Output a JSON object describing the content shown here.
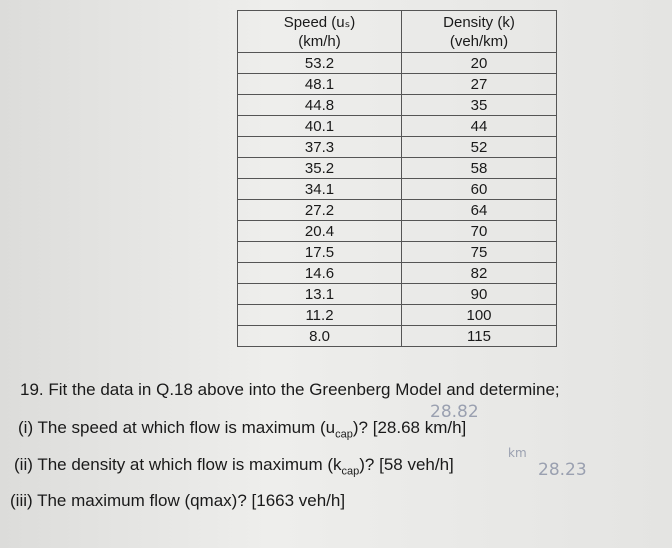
{
  "table": {
    "header": [
      {
        "line1": "Speed (uₛ)",
        "line2": "(km/h)"
      },
      {
        "line1": "Density (k)",
        "line2": "(veh/km)"
      }
    ],
    "rows": [
      [
        "53.2",
        "20"
      ],
      [
        "48.1",
        "27"
      ],
      [
        "44.8",
        "35"
      ],
      [
        "40.1",
        "44"
      ],
      [
        "37.3",
        "52"
      ],
      [
        "35.2",
        "58"
      ],
      [
        "34.1",
        "60"
      ],
      [
        "27.2",
        "64"
      ],
      [
        "20.4",
        "70"
      ],
      [
        "17.5",
        "75"
      ],
      [
        "14.6",
        "82"
      ],
      [
        "13.1",
        "90"
      ],
      [
        "11.2",
        "100"
      ],
      [
        "8.0",
        "115"
      ]
    ]
  },
  "question": {
    "number": "19.",
    "text": "Fit the data in Q.18 above into the Greenberg Model and determine;"
  },
  "parts": [
    {
      "label": "(i)",
      "before": "The speed at which flow is maximum (u",
      "sub": "cap",
      "after": ")? [28.68 km/h]"
    },
    {
      "label": "(ii)",
      "before": "The density at which flow is maximum (k",
      "sub": "cap",
      "after": ")? [58 veh/h]"
    },
    {
      "label": "(iii)",
      "before": "The maximum flow (qmax)? [1663 veh/h]"
    }
  ],
  "annotations": [
    "28.82",
    "km",
    "28.23"
  ]
}
